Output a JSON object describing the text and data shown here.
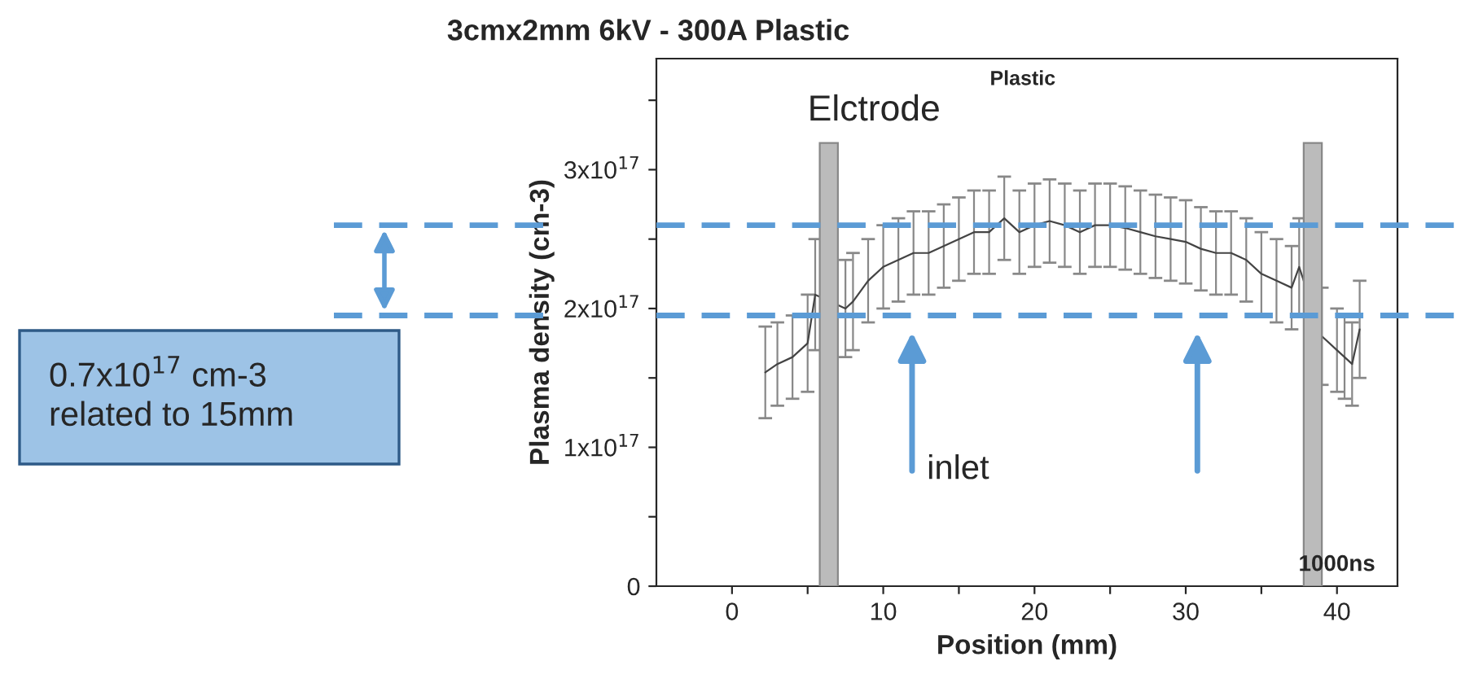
{
  "chart_data": {
    "type": "line",
    "title": "3cmx2mm 6kV - 300A Plastic",
    "xlabel": "Position (mm)",
    "ylabel": "Plasma density (cm-3)",
    "x": [
      2.2,
      3,
      4,
      5,
      5.5,
      7.5,
      8,
      9,
      10,
      11,
      12,
      13,
      14,
      15,
      16,
      17,
      18,
      19,
      20,
      21,
      22,
      23,
      24,
      25,
      26,
      27,
      28,
      29,
      30,
      31,
      32,
      33,
      34,
      35,
      36,
      37,
      37.5,
      39,
      40,
      40.5,
      41,
      41.5
    ],
    "series": [
      {
        "color": "#444444",
        "values": [
          1.54e+17,
          1.6e+17,
          1.65e+17,
          1.75e+17,
          2.1e+17,
          2e+17,
          2.05e+17,
          2.2e+17,
          2.3e+17,
          2.35e+17,
          2.4e+17,
          2.4e+17,
          2.45e+17,
          2.5e+17,
          2.55e+17,
          2.55e+17,
          2.65e+17,
          2.55e+17,
          2.6e+17,
          2.63e+17,
          2.6e+17,
          2.55e+17,
          2.6e+17,
          2.6e+17,
          2.58e+17,
          2.55e+17,
          2.52e+17,
          2.5e+17,
          2.48e+17,
          2.43e+17,
          2.4e+17,
          2.4e+17,
          2.35e+17,
          2.25e+17,
          2.2e+17,
          2.15e+17,
          2.3e+17,
          1.8e+17,
          1.7e+17,
          1.65e+17,
          1.6e+17,
          1.85e+17
        ],
        "errors": [
          3.3e+16,
          3e+16,
          3e+16,
          3.5e+16,
          4e+16,
          3.5e+16,
          3.5e+16,
          3e+16,
          3e+16,
          3e+16,
          3e+16,
          3e+16,
          3e+16,
          3e+16,
          3e+16,
          3e+16,
          3e+16,
          3e+16,
          3e+16,
          3e+16,
          3e+16,
          3e+16,
          3e+16,
          3e+16,
          3e+16,
          3e+16,
          3e+16,
          3e+16,
          3e+16,
          3e+16,
          3e+16,
          3e+16,
          3e+16,
          3e+16,
          3e+16,
          3e+16,
          3.5e+16,
          3.5e+16,
          3e+16,
          3e+16,
          3e+16,
          3.5e+16
        ]
      }
    ],
    "xlim": [
      -5,
      44
    ],
    "xticks": [
      0,
      {
        "value": 5,
        "label": null
      },
      10,
      {
        "value": 15,
        "label": null
      },
      20,
      {
        "value": 25,
        "label": null
      },
      30,
      {
        "value": 35,
        "label": null
      },
      40
    ],
    "ylim": [
      0,
      3.8e+17
    ],
    "yticks": [
      0,
      {
        "value": 5e+16,
        "label": null
      },
      {
        "value": 1e+17,
        "label": "1x10$^{17}$"
      },
      {
        "value": 1.5e+17,
        "label": null
      },
      {
        "value": 2e+17,
        "label": "2x10$^{17}$"
      },
      {
        "value": 2.5e+17,
        "label": null
      },
      {
        "value": 3e+17,
        "label": "3x10$^{17}$"
      },
      {
        "value": 3.5e+17,
        "label": null
      }
    ],
    "bands": [
      {
        "axis": "x",
        "from": 5.8,
        "to": 7.0,
        "label": "Elctrode",
        "color": "#bbbbbb"
      },
      {
        "axis": "x",
        "from": 37.8,
        "to": 39.0,
        "label": null,
        "color": "#bbbbbb"
      }
    ],
    "ref_lines": [
      {
        "axis": "y",
        "value": 2.6e+17,
        "label": null,
        "color": "#5b9bd5",
        "line_style": "dashed"
      },
      {
        "axis": "y",
        "value": 1.95e+17,
        "label": null,
        "color": "#5b9bd5",
        "line_style": "dashed"
      }
    ],
    "annotations": [
      "Plastic",
      "inlet",
      "1000ns",
      "0.7x10$^{17}$ cm-3\nrelated to 15mm"
    ],
    "grid": false,
    "legend": false,
    "marker": "none",
    "line_style": "solid"
  }
}
